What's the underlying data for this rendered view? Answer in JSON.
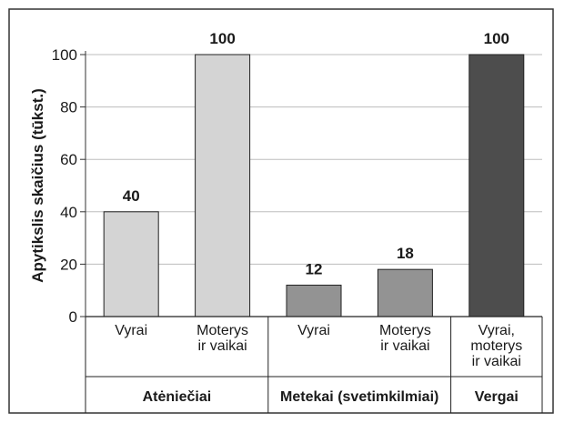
{
  "chart_data": {
    "type": "bar",
    "ylabel": "Apytikslis skaičius (tūkst.)",
    "ylim": [
      0,
      100
    ],
    "yticks": [
      0,
      20,
      40,
      60,
      80,
      100
    ],
    "grid": true,
    "bars": [
      {
        "category": [
          "Vyrai"
        ],
        "group": "Atėniečiai",
        "value": 40,
        "label": "40",
        "color": "#d4d4d4"
      },
      {
        "category": [
          "Moterys",
          "ir vaikai"
        ],
        "group": "Atėniečiai",
        "value": 100,
        "label": "100",
        "color": "#d4d4d4"
      },
      {
        "category": [
          "Vyrai"
        ],
        "group": "Metekai (svetimkilmiai)",
        "value": 12,
        "label": "12",
        "color": "#939393"
      },
      {
        "category": [
          "Moterys",
          "ir vaikai"
        ],
        "group": "Metekai (svetimkilmiai)",
        "value": 18,
        "label": "18",
        "color": "#939393"
      },
      {
        "category": [
          "Vyrai,",
          "moterys",
          "ir vaikai"
        ],
        "group": "Vergai",
        "value": 100,
        "label": "100",
        "color": "#4d4d4d"
      }
    ],
    "groups": [
      {
        "name": "Atėniečiai",
        "bars": 2
      },
      {
        "name": "Metekai (svetimkilmiai)",
        "bars": 2
      },
      {
        "name": "Vergai",
        "bars": 1
      }
    ]
  }
}
